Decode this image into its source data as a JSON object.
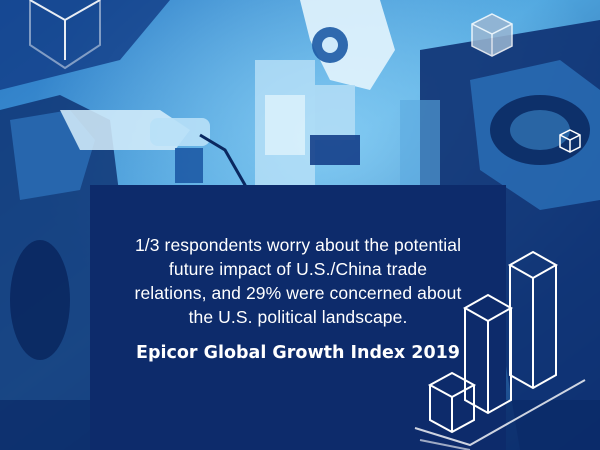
{
  "quote": {
    "text": "1/3 respondents worry about the potential future impact of U.S./China trade relations, and 29% were concerned about the U.S. political landscape."
  },
  "source": {
    "label": "Epicor Global Growth Index 2019"
  },
  "decorations": {
    "icons": [
      "cube-outline-icon",
      "cube-solid-icon",
      "bar-chart-3d-icon",
      "robot-arm-photo"
    ]
  },
  "colors": {
    "card": "#0d2b6b",
    "background_dark": "#0b2a63",
    "background_light": "#5fb6e8",
    "text": "#ffffff"
  }
}
